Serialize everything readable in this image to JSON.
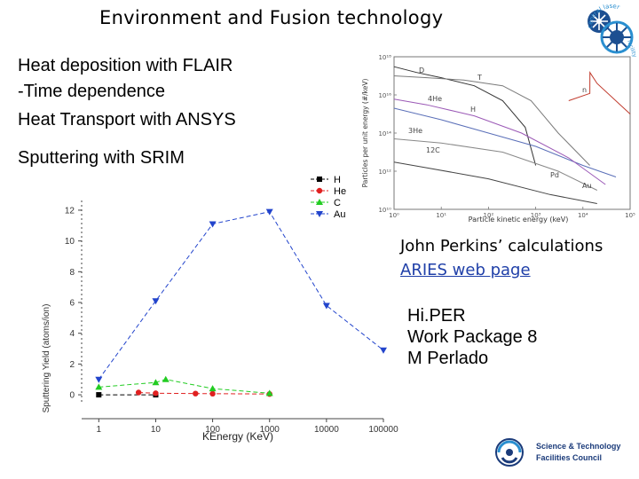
{
  "slide": {
    "title": "Environment and Fusion technology",
    "bullets": [
      "Heat deposition with FLAIR",
      "-Time dependence",
      "Heat Transport with ANSYS",
      "Sputtering with SRIM"
    ],
    "perkins": "John Perkins’ calculations",
    "aries_link": "ARIES web page",
    "hiper": "Hi.PER\nWork Package 8\nM Perlado",
    "logo_top": {
      "line1": "central laser",
      "line2": "facility"
    },
    "logo_bottom": {
      "line1": "Science & Technology",
      "line2": "Facilities Council"
    }
  },
  "chart_data": [
    {
      "type": "line",
      "xlabel": "Particle kinetic energy (keV)",
      "ylabel": "Particles per unit energy (#/keV)",
      "xscale": "log",
      "yscale": "log",
      "xlim": [
        1,
        100000
      ],
      "ylim": [
        10000000000.0,
        1e+18
      ],
      "xticks": [
        "10⁰",
        "10¹",
        "10²",
        "10³",
        "10⁴",
        "10⁵"
      ],
      "yticks": [
        "10¹⁸",
        "10¹⁶",
        "10¹⁴",
        "10¹²",
        "10¹⁰"
      ],
      "annotations": [
        "D",
        "T",
        "4He",
        "H",
        "3He",
        "12C",
        "Pd",
        "Au",
        "n"
      ],
      "series": [
        {
          "color": "#333333",
          "x": [
            1,
            3,
            10,
            50,
            200,
            600,
            1000
          ],
          "y": [
            3e+17,
            1.5e+17,
            8e+16,
            3e+16,
            5000000000000000.0,
            200000000000000.0,
            2000000000000.0
          ]
        },
        {
          "color": "#7a7a7a",
          "x": [
            1,
            5,
            30,
            200,
            800,
            3000,
            14000
          ],
          "y": [
            1e+17,
            8e+16,
            6e+16,
            3e+16,
            5000000000000000.0,
            100000000000000.0,
            2000000000000.0
          ]
        },
        {
          "color": "#c0392b",
          "x": [
            5000,
            14000,
            14100,
            20000,
            100000
          ],
          "y": [
            5000000000000000.0,
            1.2e+16,
            1.5e+17,
            4e+16,
            1000000000000000.0
          ]
        },
        {
          "color": "#5a6fb8",
          "x": [
            1,
            10,
            100,
            1000,
            10000,
            50000
          ],
          "y": [
            2000000000000000.0,
            500000000000000.0,
            100000000000000.0,
            20000000000000.0,
            2000000000000.0,
            500000000000.0
          ]
        },
        {
          "color": "#9b59b6",
          "x": [
            1,
            5,
            50,
            500,
            5000,
            30000
          ],
          "y": [
            6000000000000000.0,
            3000000000000000.0,
            800000000000000.0,
            100000000000000.0,
            5000000000000.0,
            200000000000.0
          ]
        },
        {
          "color": "#888888",
          "x": [
            1,
            10,
            200,
            3000,
            20000
          ],
          "y": [
            50000000000000.0,
            30000000000000.0,
            10000000000000.0,
            1000000000000.0,
            100000000000.0
          ]
        },
        {
          "color": "#444444",
          "x": [
            1,
            5,
            100,
            2000,
            20000
          ],
          "y": [
            3000000000000.0,
            1500000000000.0,
            400000000000.0,
            60000000000.0,
            20000000000.0
          ]
        }
      ]
    },
    {
      "type": "line",
      "xlabel": "KEnergy (KeV)",
      "ylabel": "Sputtering Yield (atoms/ion)",
      "xscale": "log",
      "xticks": [
        1,
        10,
        100,
        1000,
        10000,
        100000
      ],
      "yticks": [
        0,
        2,
        4,
        6,
        8,
        10,
        12
      ],
      "xlim": [
        0.5,
        100000
      ],
      "ylim": [
        -0.4,
        12.4
      ],
      "legend_position": "top-right",
      "series": [
        {
          "name": "H",
          "color": "#000000",
          "marker": "square",
          "x": [
            1,
            10
          ],
          "y": [
            0.0,
            0.0
          ]
        },
        {
          "name": "He",
          "color": "#e02020",
          "marker": "circle",
          "x": [
            5,
            10,
            50,
            100,
            1000
          ],
          "y": [
            0.15,
            0.1,
            0.08,
            0.07,
            0.05
          ]
        },
        {
          "name": "C",
          "color": "#22cc22",
          "marker": "triangle-up",
          "x": [
            1,
            10,
            15,
            100,
            1000
          ],
          "y": [
            0.5,
            0.8,
            1.0,
            0.4,
            0.1
          ]
        },
        {
          "name": "Au",
          "color": "#2244cc",
          "marker": "triangle-down",
          "x": [
            1,
            10,
            100,
            1000,
            10000,
            100000
          ],
          "y": [
            1.0,
            6.1,
            11.1,
            11.9,
            5.8,
            2.9
          ]
        }
      ]
    }
  ]
}
